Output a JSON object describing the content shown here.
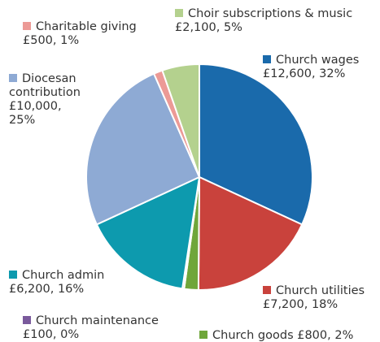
{
  "chart_data": {
    "type": "pie",
    "title": "",
    "start_angle_deg": 0,
    "direction": "clockwise",
    "slices": [
      {
        "name": "Church wages",
        "value": 12600,
        "value_label": "£12,600",
        "percent_label": "32%",
        "color": "#1a6aab"
      },
      {
        "name": "Church utilities",
        "value": 7200,
        "value_label": "£7,200",
        "percent_label": "18%",
        "color": "#c9423c"
      },
      {
        "name": "Church goods",
        "value": 800,
        "value_label": "£800",
        "percent_label": "2%",
        "color": "#6fa63a"
      },
      {
        "name": "Church maintenance",
        "value": 100,
        "value_label": "£100",
        "percent_label": "0%",
        "color": "#7a5a9c"
      },
      {
        "name": "Church admin",
        "value": 6200,
        "value_label": "£6,200",
        "percent_label": "16%",
        "color": "#0d9aae"
      },
      {
        "name": "Diocesan contribution",
        "value": 10000,
        "value_label": "£10,000",
        "percent_label": "25%",
        "color": "#8eaad4"
      },
      {
        "name": "Charitable giving",
        "value": 500,
        "value_label": "£500",
        "percent_label": "1%",
        "color": "#ec9a96"
      },
      {
        "name": "Choir subscriptions & music",
        "value": 2100,
        "value_label": "£2,100",
        "percent_label": "5%",
        "color": "#b4d18e"
      }
    ]
  }
}
